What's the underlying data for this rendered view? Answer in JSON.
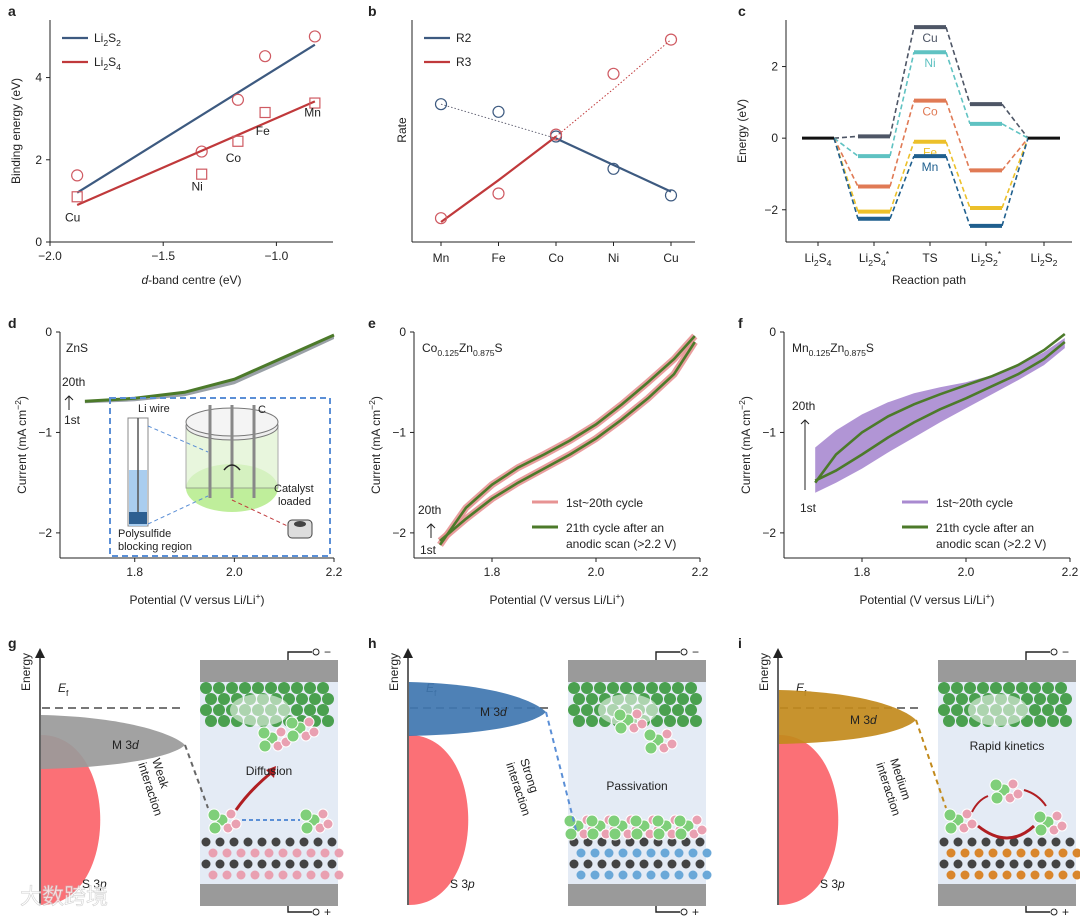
{
  "colors": {
    "blue": "#3d5a80",
    "red": "#c0393b",
    "pinkMarker": "#cf5a62",
    "green": "#4c7a2a",
    "purple": "#a98ad0",
    "pink": "#e79393",
    "cu": "#4e5666",
    "ni": "#5fc2c2",
    "co": "#e07a55",
    "fe": "#ecc02a",
    "mn": "#1f5f8e",
    "dashBlue": "#5b8fd6"
  },
  "panels": [
    {
      "id": "a",
      "label": "a"
    },
    {
      "id": "b",
      "label": "b"
    },
    {
      "id": "c",
      "label": "c"
    },
    {
      "id": "d",
      "label": "d"
    },
    {
      "id": "e",
      "label": "e"
    },
    {
      "id": "f",
      "label": "f"
    },
    {
      "id": "g",
      "label": "g"
    },
    {
      "id": "h",
      "label": "h"
    },
    {
      "id": "i",
      "label": "i"
    }
  ],
  "chart_data": [
    {
      "panel": "a",
      "type": "scatter",
      "xlabel_pre": "d",
      "xlabel_post": "-band centre (eV)",
      "ylabel": "Binding energy (eV)",
      "xlim": [
        -2.0,
        -0.75
      ],
      "ylim": [
        0,
        5.4
      ],
      "xticks": [
        {
          "v": -2.0,
          "t": "−2.0"
        },
        {
          "v": -1.5,
          "t": "−1.5"
        },
        {
          "v": -1.0,
          "t": "−1.0"
        }
      ],
      "yticks": [
        {
          "v": 0,
          "t": "0"
        },
        {
          "v": 2,
          "t": "2"
        },
        {
          "v": 4,
          "t": "4"
        }
      ],
      "series": [
        {
          "name_main": "Li",
          "name_sub1": "2",
          "name_mid": "S",
          "name_sub2": "2",
          "marker": "circle",
          "color": "blue",
          "x": [
            -1.88,
            -1.33,
            -1.17,
            -1.05,
            -0.83
          ],
          "y": [
            1.62,
            2.2,
            3.46,
            4.52,
            5.0
          ],
          "fit": [
            [
              -1.88,
              1.2
            ],
            [
              -0.83,
              4.8
            ]
          ]
        },
        {
          "name_main": "Li",
          "name_sub1": "2",
          "name_mid": "S",
          "name_sub2": "4",
          "marker": "square",
          "color": "red",
          "x": [
            -1.88,
            -1.33,
            -1.17,
            -1.05,
            -0.83
          ],
          "y": [
            1.1,
            1.65,
            2.45,
            3.15,
            3.38
          ],
          "fit": [
            [
              -1.88,
              0.9
            ],
            [
              -0.83,
              3.42
            ]
          ]
        }
      ],
      "point_labels": [
        {
          "text": "Cu",
          "x": -1.9,
          "y": 0.5
        },
        {
          "text": "Ni",
          "x": -1.35,
          "y": 1.25
        },
        {
          "text": "Co",
          "x": -1.19,
          "y": 1.95
        },
        {
          "text": "Fe",
          "x": -1.06,
          "y": 2.6
        },
        {
          "text": "Mn",
          "x": -0.84,
          "y": 3.05
        }
      ]
    },
    {
      "panel": "b",
      "type": "scatter",
      "ylabel": "Rate",
      "categories": [
        "Mn",
        "Fe",
        "Co",
        "Ni",
        "Cu"
      ],
      "series": [
        {
          "name": "R2",
          "color": "blue",
          "values": [
            0.62,
            0.58,
            0.45,
            0.28,
            0.14
          ],
          "fit": [
            0.62,
            0.53,
            0.44,
            0.3,
            0.16
          ]
        },
        {
          "name": "R3",
          "color": "red",
          "values": [
            0.02,
            0.15,
            0.46,
            0.78,
            0.96
          ],
          "fit": [
            0.0,
            0.22,
            0.45,
            0.7,
            0.96
          ]
        }
      ]
    },
    {
      "panel": "c",
      "type": "line",
      "xlabel": "Reaction path",
      "ylabel": "Energy (eV)",
      "ylim": [
        -2.9,
        3.3
      ],
      "yticks": [
        {
          "v": -2,
          "t": "−2"
        },
        {
          "v": 0,
          "t": "0"
        },
        {
          "v": 2,
          "t": "2"
        }
      ],
      "categories": [
        {
          "main": "Li",
          "sub1": "2",
          "mid": "S",
          "sub2": "4",
          "sup": ""
        },
        {
          "main": "Li",
          "sub1": "2",
          "mid": "S",
          "sub2": "4",
          "sup": "*"
        },
        {
          "main": "TS",
          "sub1": "",
          "mid": "",
          "sub2": "",
          "sup": ""
        },
        {
          "main": "Li",
          "sub1": "2",
          "mid": "S",
          "sub2": "2",
          "sup": "*"
        },
        {
          "main": "Li",
          "sub1": "2",
          "mid": "S",
          "sub2": "2",
          "sup": ""
        }
      ],
      "series": [
        {
          "name": "Cu",
          "color": "cu",
          "values": [
            0,
            0.05,
            3.1,
            0.95,
            0
          ]
        },
        {
          "name": "Ni",
          "color": "ni",
          "values": [
            0,
            -0.5,
            2.4,
            0.4,
            0
          ]
        },
        {
          "name": "Co",
          "color": "co",
          "values": [
            0,
            -1.35,
            1.05,
            -0.9,
            0
          ]
        },
        {
          "name": "Fe",
          "color": "fe",
          "values": [
            0,
            -2.05,
            -0.1,
            -1.95,
            0
          ]
        },
        {
          "name": "Mn",
          "color": "mn",
          "values": [
            0,
            -2.25,
            -0.5,
            -2.45,
            0
          ]
        }
      ]
    },
    {
      "panel": "d",
      "type": "line",
      "title": "ZnS",
      "xlabel": "Potential (V versus Li/Li",
      "xlabel_sup": "+",
      "xlabel_end": ")",
      "ylabel_main": "Current (mA cm",
      "ylabel_sup": "−2",
      "ylabel_end": ")",
      "xlim": [
        1.65,
        2.2
      ],
      "ylim": [
        -2.25,
        0
      ],
      "xticks": [
        {
          "v": 1.8,
          "t": "1.8"
        },
        {
          "v": 2.0,
          "t": "2.0"
        },
        {
          "v": 2.2,
          "t": "2.2"
        }
      ],
      "yticks": [
        {
          "v": 0,
          "t": "0"
        },
        {
          "v": -1,
          "t": "−1"
        },
        {
          "v": -2,
          "t": "−2"
        }
      ],
      "cycle_top": "20th",
      "cycle_bottom": "1st",
      "x": [
        1.7,
        1.8,
        1.9,
        2.0,
        2.1,
        2.2
      ],
      "upper": [
        -0.69,
        -0.66,
        -0.6,
        -0.47,
        -0.25,
        -0.03
      ],
      "lower": [
        -0.71,
        -0.69,
        -0.64,
        -0.52,
        -0.3,
        -0.07
      ],
      "inset_labels": {
        "liwire": "Li wire",
        "c": "C",
        "poly1": "Polysulfide",
        "poly2": "blocking region",
        "cat1": "Catalyst",
        "cat2": "loaded"
      }
    },
    {
      "panel": "e",
      "type": "line",
      "title_parts": [
        "Co",
        "0.125",
        "Zn",
        "0.875",
        "S"
      ],
      "xlabel": "Potential (V versus Li/Li",
      "xlabel_sup": "+",
      "xlabel_end": ")",
      "ylabel_main": "Current (mA cm",
      "ylabel_sup": "−2",
      "ylabel_end": ")",
      "xlim": [
        1.65,
        2.2
      ],
      "ylim": [
        -2.25,
        0
      ],
      "xticks": [
        {
          "v": 1.8,
          "t": "1.8"
        },
        {
          "v": 2.0,
          "t": "2.0"
        },
        {
          "v": 2.2,
          "t": "2.2"
        }
      ],
      "yticks": [
        {
          "v": 0,
          "t": "0"
        },
        {
          "v": -1,
          "t": "−1"
        },
        {
          "v": -2,
          "t": "−2"
        }
      ],
      "cycle_top": "20th",
      "cycle_bottom": "1st",
      "legend": [
        "1st~20th cycle",
        "21th cycle after an",
        "anodic scan (>2.2 V)"
      ],
      "band_color": "pink",
      "x": [
        1.7,
        1.75,
        1.8,
        1.85,
        1.9,
        1.95,
        2.0,
        2.05,
        2.1,
        2.15,
        2.19
      ],
      "outer": [
        -2.12,
        -1.75,
        -1.52,
        -1.35,
        -1.22,
        -1.08,
        -0.92,
        -0.72,
        -0.5,
        -0.27,
        -0.04
      ],
      "inner": [
        -2.08,
        -1.86,
        -1.66,
        -1.5,
        -1.36,
        -1.22,
        -1.06,
        -0.87,
        -0.66,
        -0.42,
        -0.1
      ]
    },
    {
      "panel": "f",
      "type": "line",
      "title_parts": [
        "Mn",
        "0.125",
        "Zn",
        "0.875",
        "S"
      ],
      "xlabel": "Potential (V versus Li/Li",
      "xlabel_sup": "+",
      "xlabel_end": ")",
      "ylabel_main": "Current (mA cm",
      "ylabel_sup": "−2",
      "ylabel_end": ")",
      "xlim": [
        1.65,
        2.2
      ],
      "ylim": [
        -2.25,
        0
      ],
      "xticks": [
        {
          "v": 1.8,
          "t": "1.8"
        },
        {
          "v": 2.0,
          "t": "2.0"
        },
        {
          "v": 2.2,
          "t": "2.2"
        }
      ],
      "yticks": [
        {
          "v": 0,
          "t": "0"
        },
        {
          "v": -1,
          "t": "−1"
        },
        {
          "v": -2,
          "t": "−2"
        }
      ],
      "cycle_top": "20th",
      "cycle_bottom": "1st",
      "legend": [
        "1st~20th cycle",
        "21th cycle after an",
        "anodic scan (>2.2 V)"
      ],
      "band_color": "purple",
      "x": [
        1.71,
        1.75,
        1.8,
        1.85,
        1.9,
        1.95,
        2.0,
        2.05,
        2.1,
        2.15,
        2.19
      ],
      "outer": [
        -1.5,
        -1.22,
        -1.0,
        -0.84,
        -0.72,
        -0.62,
        -0.53,
        -0.44,
        -0.33,
        -0.18,
        -0.02
      ],
      "inner": [
        -1.48,
        -1.38,
        -1.22,
        -1.05,
        -0.9,
        -0.77,
        -0.66,
        -0.54,
        -0.42,
        -0.27,
        -0.1
      ],
      "band_top": [
        -1.15,
        -0.98,
        -0.82,
        -0.7,
        -0.61,
        -0.55,
        -0.5,
        -0.43,
        -0.33,
        -0.2,
        -0.06
      ],
      "band_bottom": [
        -1.6,
        -1.5,
        -1.36,
        -1.2,
        -1.05,
        -0.9,
        -0.76,
        -0.62,
        -0.48,
        -0.33,
        -0.16
      ]
    }
  ],
  "schematics": [
    {
      "panel": "g",
      "ylabel": "Energy",
      "ef_main": "E",
      "ef_sub": "f",
      "m3d_main": "M 3",
      "m3d_d": "d",
      "s3p_main": "S 3",
      "s3p_p": "p",
      "interaction": [
        "Weak",
        "interaction"
      ],
      "process": "Diffusion"
    },
    {
      "panel": "h",
      "ylabel": "Energy",
      "ef_main": "E",
      "ef_sub": "f",
      "m3d_main": "M 3",
      "m3d_d": "d",
      "s3p_main": "S 3",
      "s3p_p": "p",
      "interaction": [
        "Strong",
        "interaction"
      ],
      "process": "Passivation"
    },
    {
      "panel": "i",
      "ylabel": "Energy",
      "ef_main": "E",
      "ef_sub": "f",
      "m3d_main": "M 3",
      "m3d_d": "d",
      "s3p_main": "S 3",
      "s3p_p": "p",
      "interaction": [
        "Medium",
        "interaction"
      ],
      "process": "Rapid kinetics"
    }
  ],
  "electrode_signs": {
    "minus": "−",
    "plus": "+"
  },
  "watermark": "大数跨境"
}
